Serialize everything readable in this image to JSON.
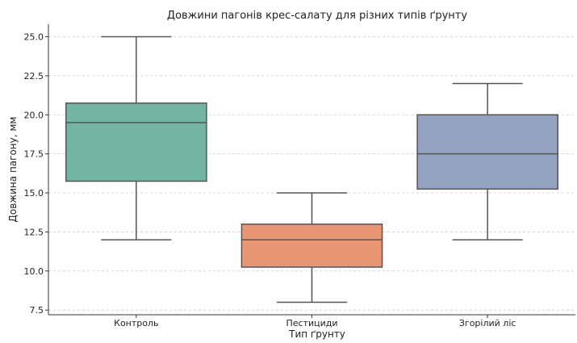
{
  "chart_data": {
    "type": "box",
    "title": "Довжини пагонів крес-салату для різних типів ґрунту",
    "xlabel": "Тип ґрунту",
    "ylabel": "Довжина пагону, мм",
    "ylim": [
      7.2,
      25.8
    ],
    "yticks": [
      "7.5",
      "10.0",
      "12.5",
      "15.0",
      "17.5",
      "20.0",
      "22.5",
      "25.0"
    ],
    "grid": "horizontal dashed",
    "categories": [
      "Контроль",
      "Пестициди",
      "Згорілий ліс"
    ],
    "boxes": [
      {
        "category": "Контроль",
        "whisker_low": 12.0,
        "q1": 15.75,
        "median": 19.5,
        "q3": 20.75,
        "whisker_high": 25.0,
        "color": "#72b6a1"
      },
      {
        "category": "Пестициди",
        "whisker_low": 8.0,
        "q1": 10.25,
        "median": 12.0,
        "q3": 13.0,
        "whisker_high": 15.0,
        "color": "#e99675"
      },
      {
        "category": "Згорілий ліс",
        "whisker_low": 12.0,
        "q1": 15.25,
        "median": 17.5,
        "q3": 20.0,
        "whisker_high": 22.0,
        "color": "#95a3c3"
      }
    ],
    "line_color": "#555555"
  }
}
